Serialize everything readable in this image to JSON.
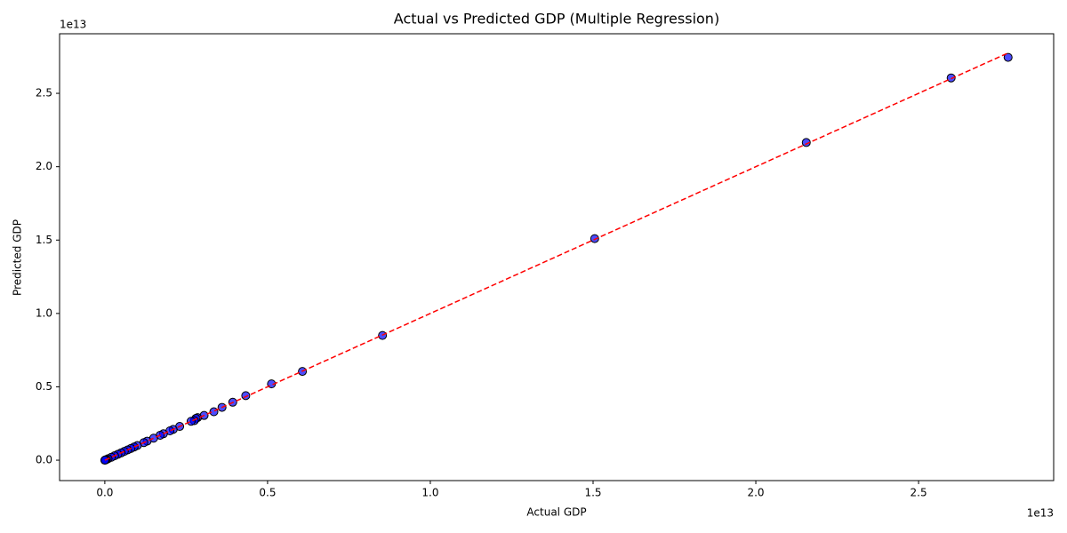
{
  "chart_data": {
    "type": "scatter",
    "title": "Actual vs Predicted GDP (Multiple Regression)",
    "x_label": "Actual GDP",
    "y_label": "Predicted GDP",
    "x_offset_label": "1e13",
    "y_offset_label": "1e13",
    "x": [
      2.775,
      2.6,
      2.155,
      1.505,
      0.853,
      0.607,
      0.512,
      0.433,
      0.393,
      0.36,
      0.335,
      0.305,
      0.285,
      0.28,
      0.275,
      0.265,
      0.23,
      0.21,
      0.2,
      0.18,
      0.17,
      0.15,
      0.13,
      0.12,
      0.1,
      0.09,
      0.08,
      0.07,
      0.06,
      0.05,
      0.04,
      0.03,
      0.02,
      0.01,
      0.005,
      0.002,
      0.0
    ],
    "values": [
      2.745,
      2.605,
      2.165,
      1.51,
      0.85,
      0.605,
      0.52,
      0.44,
      0.395,
      0.36,
      0.33,
      0.305,
      0.29,
      0.285,
      0.27,
      0.265,
      0.23,
      0.21,
      0.2,
      0.18,
      0.17,
      0.15,
      0.13,
      0.12,
      0.1,
      0.09,
      0.08,
      0.07,
      0.06,
      0.05,
      0.04,
      0.03,
      0.02,
      0.01,
      0.005,
      0.002,
      0.0
    ],
    "color": "#0000ff",
    "reference_line": {
      "x": [
        0.0,
        2.775
      ],
      "y": [
        0.0,
        2.775
      ],
      "color": "#ff0000"
    },
    "xlim": [
      -0.139,
      2.915
    ],
    "ylim": [
      -0.139,
      2.906
    ],
    "xticks": [
      {
        "value": 0,
        "label": "0.0"
      },
      0.5,
      {
        "value": 1,
        "label": "1.0"
      },
      1.5,
      {
        "value": 2,
        "label": "2.0"
      },
      2.5
    ],
    "yticks": [
      {
        "value": 0,
        "label": "0.0"
      },
      0.5,
      {
        "value": 1,
        "label": "1.0"
      },
      1.5,
      {
        "value": 2,
        "label": "2.0"
      },
      2.5
    ],
    "grid": false
  }
}
